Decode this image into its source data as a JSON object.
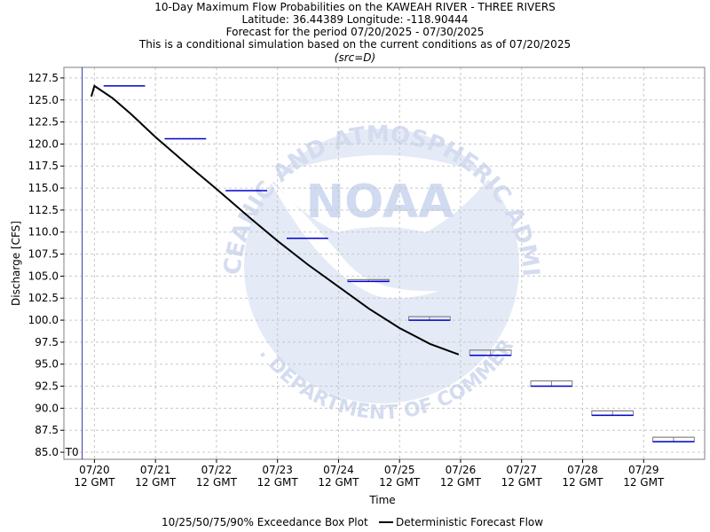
{
  "chart_data": {
    "type": "box",
    "title_lines": [
      "10-Day Maximum Flow Probabilities on the KAWEAH RIVER - THREE RIVERS",
      "Latitude: 36.44389 Longitude: -118.90444",
      "Forecast for the period 07/20/2025 - 07/30/2025",
      "This is a conditional simulation based on the current conditions as of 07/20/2025"
    ],
    "subtitle": "(src=D)",
    "xlabel": "Time",
    "ylabel": "Discharge [CFS]",
    "ylim": [
      84.2,
      128.7
    ],
    "yticks": [
      85.0,
      87.5,
      90.0,
      92.5,
      95.0,
      97.5,
      100.0,
      102.5,
      105.0,
      107.5,
      110.0,
      112.5,
      115.0,
      117.5,
      120.0,
      122.5,
      125.0,
      127.5
    ],
    "xlim": [
      -0.5,
      10.0
    ],
    "x_ticks": [
      {
        "x": 0,
        "date": "07/20",
        "time": "12 GMT"
      },
      {
        "x": 1,
        "date": "07/21",
        "time": "12 GMT"
      },
      {
        "x": 2,
        "date": "07/22",
        "time": "12 GMT"
      },
      {
        "x": 3,
        "date": "07/23",
        "time": "12 GMT"
      },
      {
        "x": 4,
        "date": "07/24",
        "time": "12 GMT"
      },
      {
        "x": 5,
        "date": "07/25",
        "time": "12 GMT"
      },
      {
        "x": 6,
        "date": "07/26",
        "time": "12 GMT"
      },
      {
        "x": 7,
        "date": "07/27",
        "time": "12 GMT"
      },
      {
        "x": 8,
        "date": "07/28",
        "time": "12 GMT"
      },
      {
        "x": 9,
        "date": "07/29",
        "time": "12 GMT"
      }
    ],
    "t0_label": "T0",
    "t0_x": -0.2,
    "grid": true,
    "boxes": [
      {
        "x0": 0.15,
        "x1": 0.83,
        "p10": 126.6,
        "p25": 126.6,
        "p50": 126.6,
        "p75": 126.6,
        "p90": 126.6
      },
      {
        "x0": 1.15,
        "x1": 1.83,
        "p10": 120.6,
        "p25": 120.6,
        "p50": 120.6,
        "p75": 120.6,
        "p90": 120.6
      },
      {
        "x0": 2.15,
        "x1": 2.83,
        "p10": 114.7,
        "p25": 114.7,
        "p50": 114.7,
        "p75": 114.7,
        "p90": 114.7
      },
      {
        "x0": 3.15,
        "x1": 3.83,
        "p10": 109.3,
        "p25": 109.3,
        "p50": 109.3,
        "p75": 109.3,
        "p90": 109.3
      },
      {
        "x0": 4.15,
        "x1": 4.83,
        "p10": 104.4,
        "p25": 104.4,
        "p50": 104.5,
        "p75": 104.6,
        "p90": 104.6
      },
      {
        "x0": 5.15,
        "x1": 5.83,
        "p10": 100.0,
        "p25": 100.0,
        "p50": 100.2,
        "p75": 100.4,
        "p90": 100.4
      },
      {
        "x0": 6.15,
        "x1": 6.83,
        "p10": 96.0,
        "p25": 96.0,
        "p50": 96.3,
        "p75": 96.6,
        "p90": 96.6
      },
      {
        "x0": 7.15,
        "x1": 7.83,
        "p10": 92.5,
        "p25": 92.5,
        "p50": 92.8,
        "p75": 93.1,
        "p90": 93.1
      },
      {
        "x0": 8.15,
        "x1": 8.83,
        "p10": 89.2,
        "p25": 89.2,
        "p50": 89.4,
        "p75": 89.7,
        "p90": 89.7
      },
      {
        "x0": 9.15,
        "x1": 9.83,
        "p10": 86.2,
        "p25": 86.2,
        "p50": 86.4,
        "p75": 86.7,
        "p90": 86.7
      }
    ],
    "deterministic": {
      "x": [
        -0.05,
        0.0,
        0.3,
        0.6,
        1.0,
        1.5,
        2.0,
        2.5,
        3.0,
        3.5,
        4.0,
        4.5,
        5.0,
        5.5,
        5.97
      ],
      "y": [
        125.4,
        126.6,
        125.2,
        123.4,
        120.8,
        117.8,
        114.9,
        111.9,
        109.0,
        106.3,
        103.8,
        101.3,
        99.1,
        97.3,
        96.1
      ]
    },
    "legend": [
      {
        "label": "10/25/50/75/90% Exceedance Box Plot",
        "color": "#0000cc"
      },
      {
        "label": "Deterministic Forecast Flow",
        "color": "#000000"
      }
    ],
    "colors": {
      "box_median": "#0000cc",
      "box_whisker": "#808080",
      "deterministic": "#000000",
      "t0_line": "#3333aa",
      "grid": "#c8c8c8",
      "watermark": "#d8e0f2"
    },
    "watermark": {
      "logo_text": "NOAA",
      "ring_text": "NATIONAL OCEANIC AND ATMOSPHERIC ADMINISTRATION",
      "bottom_text": "U.S. DEPARTMENT OF COMMERCE"
    }
  }
}
